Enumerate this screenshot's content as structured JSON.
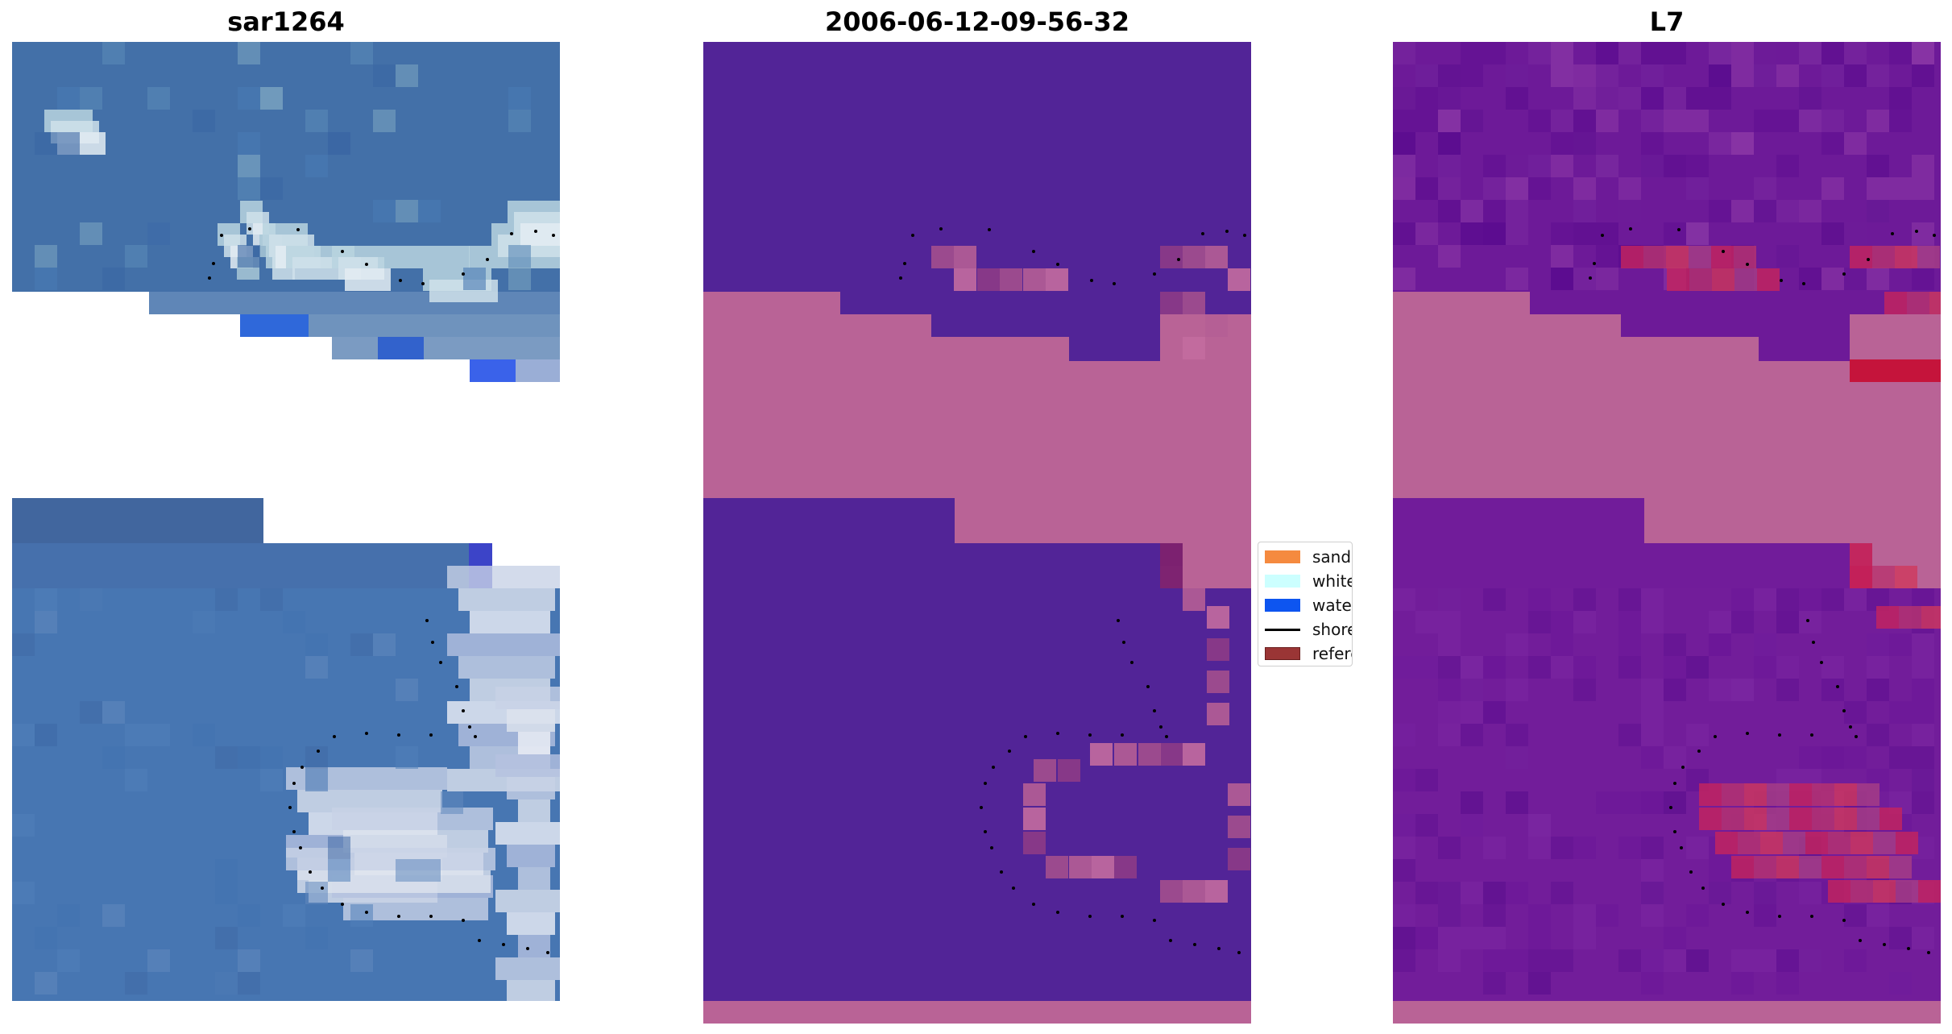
{
  "panels": {
    "rgb": {
      "title": "sar1264"
    },
    "classification": {
      "title": "2006-06-12-09-56-32"
    },
    "index": {
      "title": "L7"
    }
  },
  "legend": {
    "items": [
      {
        "label": "sand",
        "color": "#f58a3f",
        "kind": "swatch"
      },
      {
        "label": "whitewater",
        "color": "#ccffff",
        "kind": "swatch"
      },
      {
        "label": "water",
        "color": "#0d55f0",
        "kind": "swatch"
      },
      {
        "label": "shoreline",
        "color": "#000000",
        "kind": "line"
      },
      {
        "label": "reference SL",
        "color": "#9a3535",
        "kind": "swatch"
      }
    ]
  },
  "colors": {
    "water_class": "#522497",
    "nodata_class": "#b96396",
    "sea": "#3e6aa8",
    "foam": "#c9dde8",
    "index_low": "#6c1696",
    "index_high": "#c6245d"
  }
}
